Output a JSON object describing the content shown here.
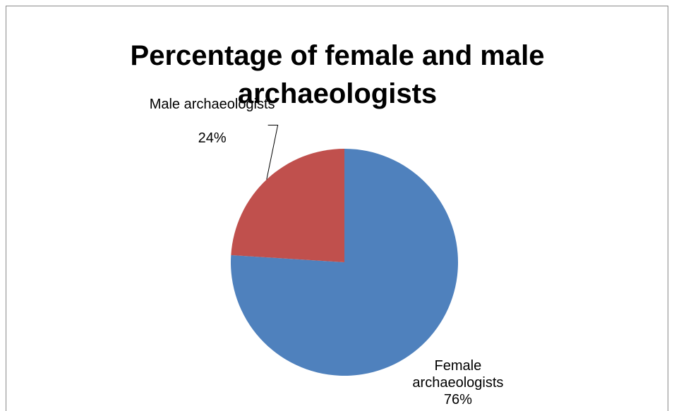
{
  "chart_data": {
    "type": "pie",
    "title": "Percentage of female and male archaeologists",
    "categories": [
      "Female archaeologists",
      "Male archaeologists"
    ],
    "values": [
      76,
      24
    ],
    "value_labels": [
      "76%",
      "24%"
    ],
    "colors": [
      "#4f81bd",
      "#c0504d"
    ]
  }
}
